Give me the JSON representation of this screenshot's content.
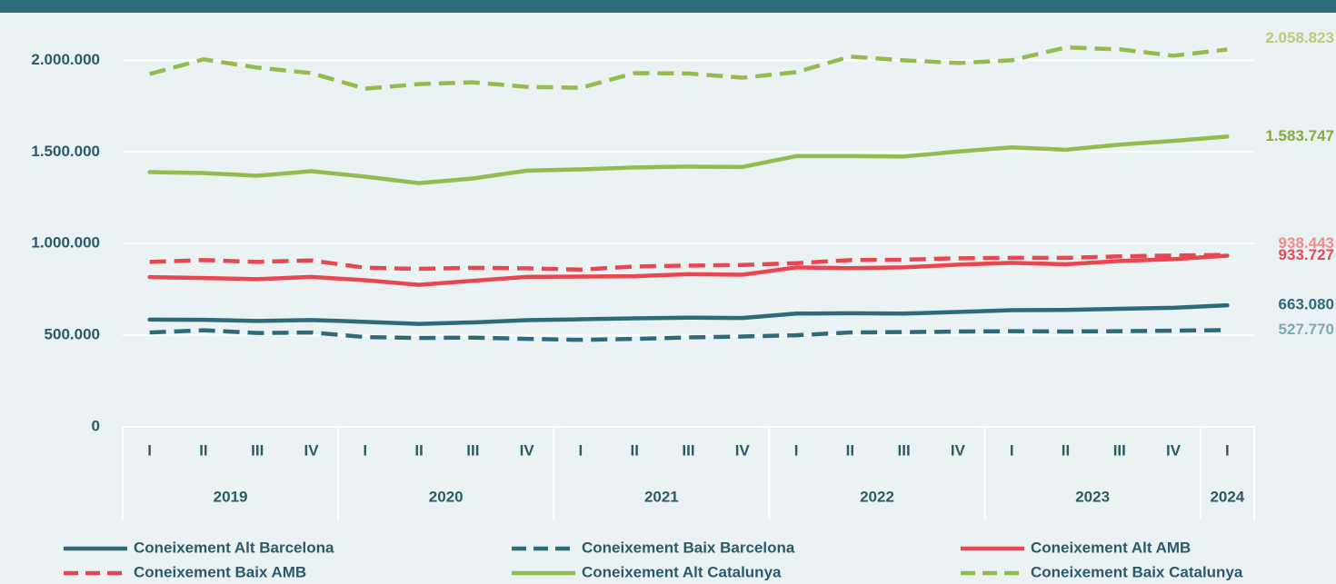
{
  "chart_data": {
    "type": "line",
    "categories": [
      "I",
      "II",
      "III",
      "IV",
      "I",
      "II",
      "III",
      "IV",
      "I",
      "II",
      "III",
      "IV",
      "I",
      "II",
      "III",
      "IV",
      "I",
      "II",
      "III",
      "IV",
      "I"
    ],
    "category_years": [
      "2019",
      "2019",
      "2019",
      "2019",
      "2020",
      "2020",
      "2020",
      "2020",
      "2021",
      "2021",
      "2021",
      "2021",
      "2022",
      "2022",
      "2022",
      "2022",
      "2023",
      "2023",
      "2023",
      "2023",
      "2024"
    ],
    "ylim": [
      0,
      2200000
    ],
    "yticks": [
      0,
      {
        "value": 500000,
        "label": "500.000"
      },
      {
        "value": 1000000,
        "label": "1.000.000"
      },
      {
        "value": 1500000,
        "label": "1.500.000"
      },
      {
        "value": 2000000,
        "label": "2.000.000"
      }
    ],
    "grid": true,
    "series": [
      {
        "name": "Coneixement Alt Barcelona",
        "color": "#2e6b7a",
        "label_color": "#2e6b7a",
        "dash": false,
        "values": [
          585000,
          584000,
          578000,
          583000,
          573000,
          562000,
          570000,
          582000,
          587000,
          592000,
          596000,
          594000,
          618000,
          620000,
          618000,
          627000,
          637000,
          638000,
          644000,
          650000,
          663080
        ],
        "value_labels": [
          null,
          null,
          null,
          null,
          null,
          null,
          null,
          null,
          null,
          null,
          null,
          null,
          null,
          null,
          null,
          null,
          null,
          null,
          null,
          null,
          "663.080"
        ]
      },
      {
        "name": "Coneixement Baix Barcelona",
        "color": "#2e6b7a",
        "label_color": "#80a9b3",
        "dash": true,
        "values": [
          515000,
          527000,
          512000,
          515000,
          490000,
          485000,
          487000,
          480000,
          475000,
          480000,
          488000,
          493000,
          500000,
          515000,
          517000,
          520000,
          522000,
          520000,
          522000,
          525000,
          527770
        ],
        "value_labels": [
          null,
          null,
          null,
          null,
          null,
          null,
          null,
          null,
          null,
          null,
          null,
          null,
          null,
          null,
          null,
          null,
          null,
          null,
          null,
          null,
          "527.770"
        ]
      },
      {
        "name": "Coneixement Alt AMB",
        "color": "#e8474f",
        "label_color": "#e8474f",
        "dash": false,
        "values": [
          817000,
          812000,
          806000,
          818000,
          800000,
          775000,
          797000,
          818000,
          820000,
          822000,
          833000,
          830000,
          870000,
          866000,
          870000,
          885000,
          895000,
          887000,
          905000,
          915000,
          933727
        ],
        "value_labels": [
          null,
          null,
          null,
          null,
          null,
          null,
          null,
          null,
          null,
          null,
          null,
          null,
          null,
          null,
          null,
          null,
          null,
          null,
          null,
          null,
          "933.727"
        ]
      },
      {
        "name": "Coneixement Baix AMB",
        "color": "#e8474f",
        "label_color": "#f08a8a",
        "dash": true,
        "values": [
          900000,
          910000,
          900000,
          908000,
          868000,
          862000,
          868000,
          865000,
          858000,
          875000,
          880000,
          883000,
          893000,
          910000,
          912000,
          920000,
          922000,
          922000,
          930000,
          935000,
          938443
        ],
        "value_labels": [
          null,
          null,
          null,
          null,
          null,
          null,
          null,
          null,
          null,
          null,
          null,
          null,
          null,
          null,
          null,
          null,
          null,
          null,
          null,
          null,
          "938.443"
        ]
      },
      {
        "name": "Coneixement Alt Catalunya",
        "color": "#93bc4f",
        "label_color": "#84ab40",
        "dash": false,
        "values": [
          1390000,
          1385000,
          1370000,
          1395000,
          1365000,
          1330000,
          1355000,
          1398000,
          1405000,
          1415000,
          1420000,
          1418000,
          1477000,
          1477000,
          1475000,
          1502000,
          1525000,
          1512000,
          1540000,
          1560000,
          1583747
        ],
        "value_labels": [
          null,
          null,
          null,
          null,
          null,
          null,
          null,
          null,
          null,
          null,
          null,
          null,
          null,
          null,
          null,
          null,
          null,
          null,
          null,
          null,
          "1.583.747"
        ]
      },
      {
        "name": "Coneixement Baix Catalunya",
        "color": "#93bc4f",
        "label_color": "#b4cf7e",
        "dash": true,
        "values": [
          1925000,
          2005000,
          1960000,
          1930000,
          1845000,
          1870000,
          1880000,
          1855000,
          1850000,
          1930000,
          1928000,
          1905000,
          1935000,
          2020000,
          2000000,
          1985000,
          2000000,
          2070000,
          2060000,
          2025000,
          2058823
        ],
        "value_labels": [
          null,
          null,
          null,
          null,
          null,
          null,
          null,
          null,
          null,
          null,
          null,
          null,
          null,
          null,
          null,
          null,
          null,
          null,
          null,
          null,
          "2.058.823"
        ]
      }
    ]
  }
}
